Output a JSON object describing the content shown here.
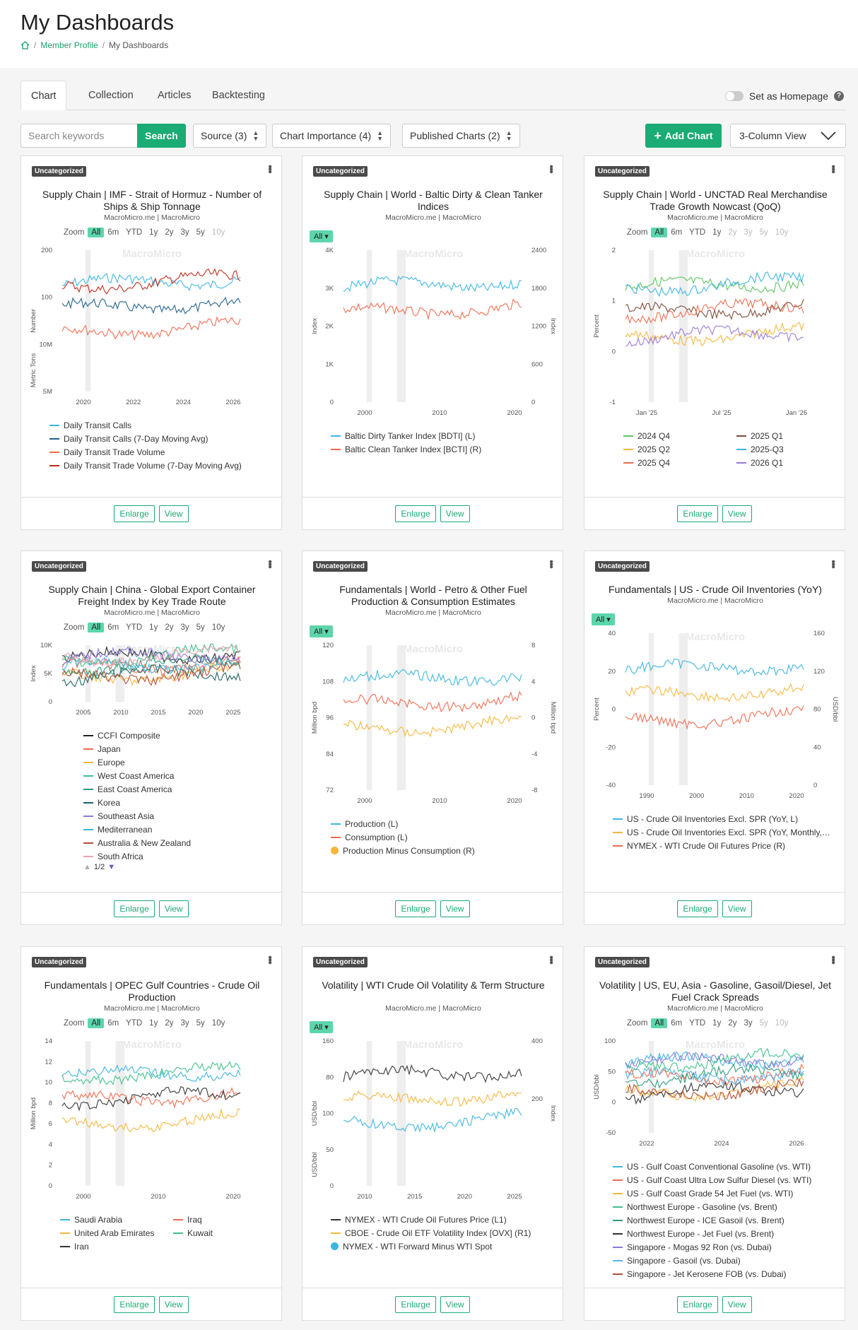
{
  "page": {
    "title": "My Dashboards",
    "breadcrumb": [
      "Member Profile",
      "My Dashboards"
    ]
  },
  "tabs": [
    "Chart",
    "Collection",
    "Articles",
    "Backtesting"
  ],
  "homepage_toggle": {
    "label": "Set as Homepage",
    "help_icon": "question-circle-icon",
    "on": false
  },
  "toolbar": {
    "search_placeholder": "Search keywords",
    "search_button": "Search",
    "filters": [
      "Source (3)",
      "Chart Importance (4)",
      "Published Charts (2)"
    ],
    "add_chart": "Add Chart",
    "view_select": "3-Column View"
  },
  "colors": {
    "accent": "#1bab74",
    "badge": "#4a4a4a",
    "highlight": "#5cd6aa"
  },
  "card_common": {
    "badge": "Uncategorized",
    "enlarge": "Enlarge",
    "view": "View",
    "watermark": "MacroMicro",
    "zoom_options": [
      "Zoom",
      "All",
      "6m",
      "YTD",
      "1y",
      "2y",
      "3y",
      "5y",
      "10y"
    ],
    "all_chip": "All"
  },
  "cards": [
    {
      "title": "Supply Chain | IMF - Strait of Hormuz - Number of Ships & Ship Tonnage",
      "source": "MacroMicro.me | MacroMicro",
      "y_left_top_ticks": [
        "200",
        "100",
        "10M"
      ],
      "y_left_bottom_ticks": [
        "5M"
      ],
      "y_left_top_label": "Number",
      "y_left_bottom_label": "Metric Tons",
      "x_ticks": [
        "2020",
        "2022",
        "2024",
        "2026"
      ],
      "legend": [
        "Daily Transit Calls",
        "Daily Transit Calls (7-Day Moving Avg)",
        "Daily Transit Trade Volume",
        "Daily Transit Trade Volume (7-Day Moving Avg)"
      ],
      "legend_colors": [
        "#3db5e0",
        "#1f5f8b",
        "#f06a4f",
        "#c0291a"
      ]
    },
    {
      "title": "Supply Chain | World - Baltic Dirty & Clean Tanker Indices",
      "source": "MacroMicro.me | MacroMicro",
      "y_left_ticks": [
        "4K",
        "3K",
        "2K",
        "1K",
        "0"
      ],
      "y_right_ticks": [
        "2400",
        "1800",
        "1200",
        "600",
        "0"
      ],
      "y_left_label": "Index",
      "y_right_label": "Index",
      "x_ticks": [
        "2000",
        "2010",
        "2020"
      ],
      "legend": [
        "Baltic Dirty Tanker Index [BDTI] (L)",
        "Baltic Clean Tanker Index [BCTI] (R)"
      ],
      "legend_colors": [
        "#3db5e0",
        "#f06a4f"
      ]
    },
    {
      "title": "Supply Chain | World - UNCTAD Real Merchandise Trade Growth Nowcast (QoQ)",
      "source": "MacroMicro.me | MacroMicro",
      "y_left_ticks": [
        "2",
        "1",
        "0",
        "-1"
      ],
      "y_left_label": "Percent",
      "x_ticks": [
        "Jan '25",
        "Jul '25",
        "Jan '26"
      ],
      "legend": [
        "2024 Q4",
        "2025 Q1",
        "2025 Q2",
        "2025-Q3",
        "2025 Q4",
        "2026 Q1"
      ],
      "legend_colors": [
        "#5cc25c",
        "#7a4a3a",
        "#f5b63c",
        "#3db5e0",
        "#f06a4f",
        "#9a7ad6"
      ]
    },
    {
      "title": "Supply Chain | China - Global Export Container Freight Index by Key Trade Route",
      "source": "MacroMicro.me | MacroMicro",
      "y_left_ticks": [
        "10K",
        "5K",
        "0"
      ],
      "y_left_label": "Index",
      "x_ticks": [
        "2005",
        "2010",
        "2015",
        "2020",
        "2025"
      ],
      "legend": [
        "CCFI Composite",
        "Japan",
        "Europe",
        "West Coast America",
        "East Coast America",
        "Korea",
        "Southeast Asia",
        "Mediterranean",
        "Australia & New Zealand",
        "South Africa"
      ],
      "legend_colors": [
        "#222222",
        "#f06a4f",
        "#f5b63c",
        "#40c08a",
        "#2a9a7a",
        "#1f5f5f",
        "#8a7ad6",
        "#3db5e0",
        "#b0503a",
        "#e8a0b0"
      ],
      "pager": "1/2"
    },
    {
      "title": "Fundamentals | World - Petro & Other Fuel Production & Consumption Estimates",
      "source": "MacroMicro.me | MacroMicro",
      "y_left_ticks": [
        "120",
        "108",
        "96",
        "84",
        "72"
      ],
      "y_right_ticks": [
        "8",
        "4",
        "0",
        "-4",
        "-8"
      ],
      "y_left_label": "Million bpd",
      "y_right_label": "Million bpd",
      "x_ticks": [
        "2000",
        "2010",
        "2020"
      ],
      "legend": [
        "Production (L)",
        "Consumption (L)",
        "Production Minus Consumption (R)"
      ],
      "legend_colors": [
        "#3db5e0",
        "#f06a4f",
        "#f5b63c"
      ]
    },
    {
      "title": "Fundamentals | US - Crude Oil Inventories (YoY)",
      "source": "MacroMicro.me | MacroMicro",
      "y_left_ticks": [
        "40",
        "20",
        "0",
        "-20",
        "-40"
      ],
      "y_right_ticks": [
        "160",
        "120",
        "80",
        "40",
        "0"
      ],
      "y_left_label": "Percent",
      "y_right_label": "USD/bbl",
      "x_ticks": [
        "1990",
        "2000",
        "2010",
        "2020"
      ],
      "legend": [
        "US - Crude Oil Inventories Excl. SPR (YoY, L)",
        "US - Crude Oil Inventories Excl. SPR (YoY, Monthly,…",
        "NYMEX - WTI Crude Oil Futures Price (R)"
      ],
      "legend_colors": [
        "#3db5e0",
        "#f5b63c",
        "#f06a4f"
      ]
    },
    {
      "title": "Fundamentals | OPEC Gulf Countries - Crude Oil Production",
      "source": "MacroMicro.me | MacroMicro",
      "y_left_ticks": [
        "14",
        "12",
        "10",
        "8",
        "6",
        "4",
        "2",
        "0"
      ],
      "y_left_label": "Million bpd",
      "x_ticks": [
        "2000",
        "2010",
        "2020"
      ],
      "legend": [
        "Saudi Arabia",
        "Iraq",
        "United Arab Emirates",
        "Kuwait",
        "Iran"
      ],
      "legend_colors": [
        "#3db5e0",
        "#f06a4f",
        "#f5b63c",
        "#40c08a",
        "#333333"
      ]
    },
    {
      "title": "Volatility | WTI Crude Oil Volatility & Term Structure",
      "source": "MacroMicro.me | MacroMicro",
      "y_left_top_ticks": [
        "160",
        "80",
        "100"
      ],
      "y_right_top_ticks": [
        "400",
        "200"
      ],
      "y_left_bottom_ticks": [
        "50",
        "0"
      ],
      "y_left_top_label": "USD/bbl",
      "y_right_top_label": "Index",
      "y_left_bottom_label": "USD/bbl",
      "x_ticks": [
        "2010",
        "2015",
        "2020",
        "2025"
      ],
      "legend": [
        "NYMEX - WTI Crude Oil Futures Price (L1)",
        "CBOE - Crude Oil ETF Volatility Index [OVX] (R1)",
        "NYMEX - WTI Forward Minus WTI Spot"
      ],
      "legend_colors": [
        "#333333",
        "#f5b63c",
        "#3db5e0"
      ]
    },
    {
      "title": "Volatility | US, EU, Asia - Gasoline, Gasoil/Diesel, Jet Fuel Crack Spreads",
      "source": "MacroMicro.me | MacroMicro",
      "y_left_ticks": [
        "100",
        "50",
        "0",
        "-50"
      ],
      "y_left_label": "USD/bbl",
      "x_ticks": [
        "2022",
        "2024",
        "2026"
      ],
      "legend": [
        "US - Gulf Coast Conventional Gasoline (vs. WTI)",
        "US - Gulf Coast Ultra Low Sulfur Diesel (vs. WTI)",
        "US - Gulf Coast Grade 54 Jet Fuel (vs. WTI)",
        "Northwest Europe - Gasoline (vs. Brent)",
        "Northwest Europe - ICE Gasoil (vs. Brent)",
        "Northwest Europe - Jet Fuel (vs. Brent)",
        "Singapore - Mogas 92 Ron (vs. Dubai)",
        "Singapore - Gasoil (vs. Dubai)",
        "Singapore - Jet Kerosene FOB (vs. Dubai)"
      ],
      "legend_colors": [
        "#3db5e0",
        "#f06a4f",
        "#f5b63c",
        "#40c08a",
        "#2a9a7a",
        "#333333",
        "#8a7ad6",
        "#5ab0e8",
        "#b0503a"
      ]
    }
  ]
}
